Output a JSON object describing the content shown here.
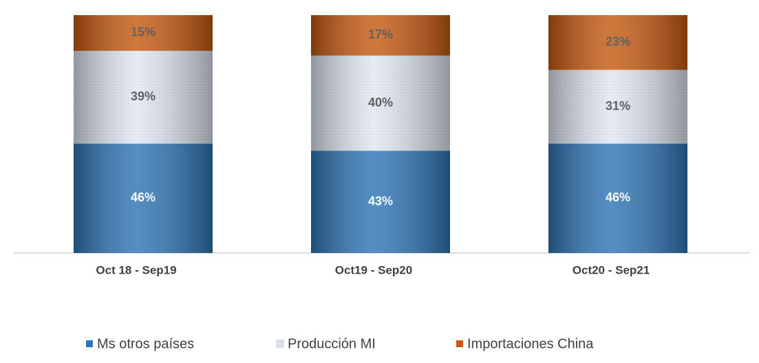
{
  "chart_data": {
    "type": "stacked-bar",
    "categories": [
      "Oct 18 - Sep19",
      "Oct19 - Sep20",
      "Oct20 - Sep21"
    ],
    "series": [
      {
        "name": "Ms otros países",
        "color": "#2e75b6",
        "values": [
          46,
          43,
          46
        ],
        "value_labels": [
          "46%",
          "43%",
          "46%"
        ]
      },
      {
        "name": "Producción MI",
        "color": "#dae3ef",
        "values": [
          39,
          40,
          31
        ],
        "value_labels": [
          "39%",
          "40%",
          "31%"
        ]
      },
      {
        "name": "Importaciones China",
        "color": "#c55a11",
        "values": [
          15,
          17,
          23
        ],
        "value_labels": [
          "15%",
          "17%",
          "23%"
        ]
      }
    ]
  }
}
